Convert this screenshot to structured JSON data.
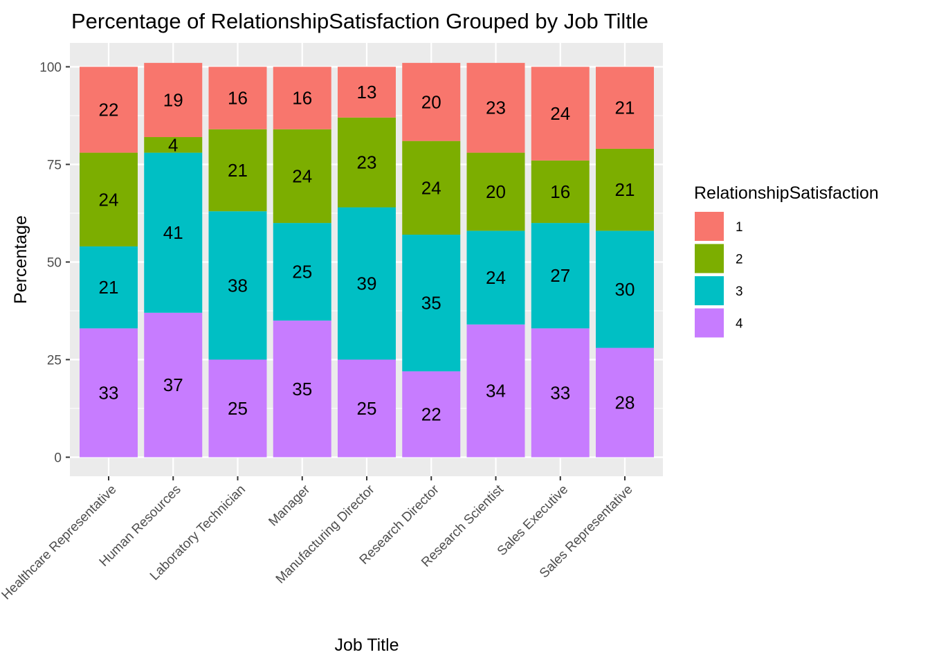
{
  "chart_data": {
    "type": "bar",
    "stacked": true,
    "title": "Percentage of RelationshipSatisfaction Grouped by Job Tiltle",
    "xlabel": "Job Title",
    "ylabel": "Percentage",
    "ylim": [
      0,
      100
    ],
    "yticks": [
      "0",
      "25",
      "50",
      "75",
      "100"
    ],
    "grid": true,
    "legend_position": "right",
    "legend_title": "RelationshipSatisfaction",
    "categories": [
      "Healthcare Representative",
      "Human Resources",
      "Laboratory Technician",
      "Manager",
      "Manufacturing Director",
      "Research Director",
      "Research Scientist",
      "Sales Executive",
      "Sales Representative"
    ],
    "series": [
      {
        "name": "1",
        "color": "#F8766D",
        "values": [
          22,
          19,
          16,
          16,
          13,
          20,
          23,
          24,
          21
        ]
      },
      {
        "name": "2",
        "color": "#7CAE00",
        "values": [
          24,
          4,
          21,
          24,
          23,
          24,
          20,
          16,
          21
        ]
      },
      {
        "name": "3",
        "color": "#00BFC4",
        "values": [
          21,
          41,
          38,
          25,
          39,
          35,
          24,
          27,
          30
        ]
      },
      {
        "name": "4",
        "color": "#C77CFF",
        "values": [
          33,
          37,
          25,
          35,
          25,
          22,
          34,
          33,
          28
        ]
      }
    ]
  }
}
